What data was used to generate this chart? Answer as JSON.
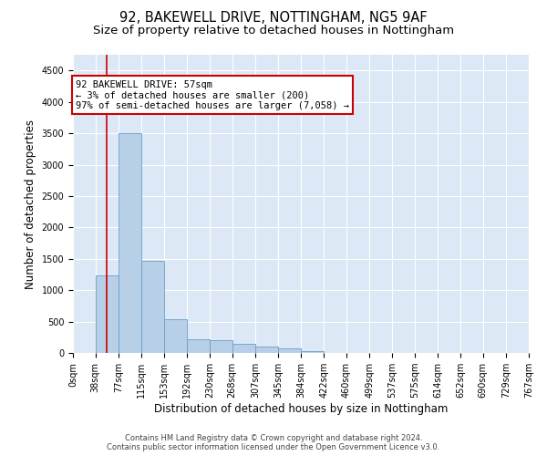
{
  "title1": "92, BAKEWELL DRIVE, NOTTINGHAM, NG5 9AF",
  "title2": "Size of property relative to detached houses in Nottingham",
  "xlabel": "Distribution of detached houses by size in Nottingham",
  "ylabel": "Number of detached properties",
  "footer1": "Contains HM Land Registry data © Crown copyright and database right 2024.",
  "footer2": "Contains public sector information licensed under the Open Government Licence v3.0.",
  "annotation_line1": "92 BAKEWELL DRIVE: 57sqm",
  "annotation_line2": "← 3% of detached houses are smaller (200)",
  "annotation_line3": "97% of semi-detached houses are larger (7,058) →",
  "bar_color": "#b8cfe8",
  "bar_edge_color": "#6a9fc8",
  "property_line_x": 57,
  "property_line_color": "#cc0000",
  "bins": [
    0,
    38,
    77,
    115,
    153,
    192,
    230,
    268,
    307,
    345,
    384,
    422,
    460,
    499,
    537,
    575,
    614,
    652,
    690,
    729,
    767
  ],
  "counts": [
    10,
    1230,
    3500,
    1470,
    540,
    220,
    200,
    145,
    105,
    70,
    35,
    5,
    0,
    5,
    0,
    0,
    0,
    0,
    0,
    0
  ],
  "ylim": [
    0,
    4750
  ],
  "yticks": [
    0,
    500,
    1000,
    1500,
    2000,
    2500,
    3000,
    3500,
    4000,
    4500
  ],
  "bg_color": "#dce8f5",
  "grid_color": "#ffffff",
  "title1_fontsize": 10.5,
  "title2_fontsize": 9.5,
  "xlabel_fontsize": 8.5,
  "ylabel_fontsize": 8.5,
  "tick_fontsize": 7,
  "footer_fontsize": 6,
  "annot_fontsize": 7.5
}
